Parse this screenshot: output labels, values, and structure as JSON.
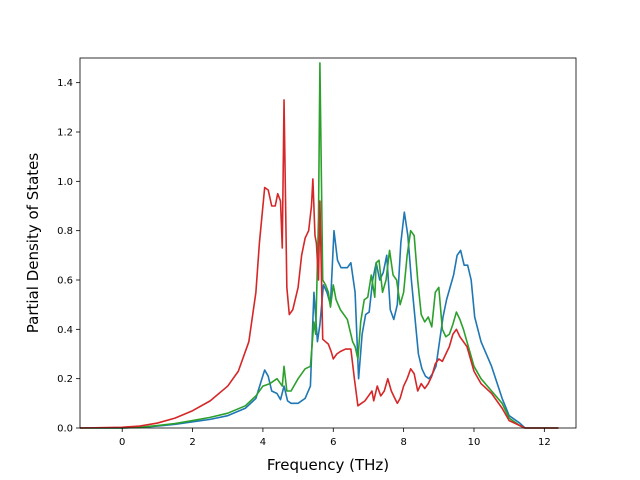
{
  "chart_data": {
    "type": "line",
    "title": "",
    "xlabel": "Frequency (THz)",
    "ylabel": "Partial Density of States",
    "xlim": [
      -1.2,
      12.9
    ],
    "ylim": [
      0.0,
      1.5
    ],
    "x_ticks": [
      0,
      2,
      4,
      6,
      8,
      10,
      12
    ],
    "y_ticks": [
      0.0,
      0.2,
      0.4,
      0.6,
      0.8,
      1.0,
      1.2,
      1.4
    ],
    "x_tick_labels": [
      "0",
      "2",
      "4",
      "6",
      "8",
      "10",
      "12"
    ],
    "y_tick_labels": [
      "0.0",
      "0.2",
      "0.4",
      "0.6",
      "0.8",
      "1.0",
      "1.2",
      "1.4"
    ],
    "grid": false,
    "legend": "none",
    "series": [
      {
        "color": "#1f77b4",
        "points": [
          [
            -1.2,
            0
          ],
          [
            0,
            0
          ],
          [
            0.5,
            0.002
          ],
          [
            1,
            0.008
          ],
          [
            1.5,
            0.015
          ],
          [
            2,
            0.025
          ],
          [
            2.5,
            0.035
          ],
          [
            3,
            0.05
          ],
          [
            3.5,
            0.08
          ],
          [
            3.8,
            0.12
          ],
          [
            3.95,
            0.19
          ],
          [
            4.05,
            0.235
          ],
          [
            4.15,
            0.21
          ],
          [
            4.25,
            0.15
          ],
          [
            4.4,
            0.14
          ],
          [
            4.5,
            0.115
          ],
          [
            4.6,
            0.17
          ],
          [
            4.7,
            0.11
          ],
          [
            4.8,
            0.1
          ],
          [
            5.0,
            0.1
          ],
          [
            5.2,
            0.12
          ],
          [
            5.35,
            0.17
          ],
          [
            5.45,
            0.55
          ],
          [
            5.55,
            0.35
          ],
          [
            5.62,
            0.42
          ],
          [
            5.72,
            0.58
          ],
          [
            5.82,
            0.55
          ],
          [
            5.92,
            0.5
          ],
          [
            6.02,
            0.8
          ],
          [
            6.12,
            0.68
          ],
          [
            6.22,
            0.65
          ],
          [
            6.4,
            0.65
          ],
          [
            6.5,
            0.67
          ],
          [
            6.62,
            0.55
          ],
          [
            6.72,
            0.2
          ],
          [
            6.82,
            0.38
          ],
          [
            6.92,
            0.46
          ],
          [
            7.02,
            0.47
          ],
          [
            7.12,
            0.6
          ],
          [
            7.22,
            0.67
          ],
          [
            7.32,
            0.6
          ],
          [
            7.42,
            0.63
          ],
          [
            7.52,
            0.7
          ],
          [
            7.62,
            0.48
          ],
          [
            7.72,
            0.44
          ],
          [
            7.82,
            0.5
          ],
          [
            7.92,
            0.75
          ],
          [
            8.02,
            0.875
          ],
          [
            8.12,
            0.78
          ],
          [
            8.22,
            0.6
          ],
          [
            8.32,
            0.45
          ],
          [
            8.42,
            0.3
          ],
          [
            8.52,
            0.24
          ],
          [
            8.62,
            0.21
          ],
          [
            8.72,
            0.2
          ],
          [
            8.82,
            0.22
          ],
          [
            8.92,
            0.25
          ],
          [
            9.02,
            0.35
          ],
          [
            9.12,
            0.45
          ],
          [
            9.22,
            0.52
          ],
          [
            9.32,
            0.57
          ],
          [
            9.42,
            0.62
          ],
          [
            9.52,
            0.7
          ],
          [
            9.62,
            0.72
          ],
          [
            9.72,
            0.66
          ],
          [
            9.82,
            0.66
          ],
          [
            9.92,
            0.6
          ],
          [
            10.02,
            0.45
          ],
          [
            10.2,
            0.35
          ],
          [
            10.5,
            0.25
          ],
          [
            10.8,
            0.12
          ],
          [
            11.0,
            0.05
          ],
          [
            11.3,
            0.02
          ],
          [
            11.45,
            0
          ],
          [
            12.4,
            0
          ]
        ]
      },
      {
        "color": "#2ca02c",
        "points": [
          [
            -1.2,
            0
          ],
          [
            0,
            0
          ],
          [
            0.5,
            0.003
          ],
          [
            1,
            0.01
          ],
          [
            1.5,
            0.018
          ],
          [
            2,
            0.03
          ],
          [
            2.5,
            0.043
          ],
          [
            3,
            0.06
          ],
          [
            3.5,
            0.09
          ],
          [
            3.8,
            0.13
          ],
          [
            4.0,
            0.17
          ],
          [
            4.2,
            0.18
          ],
          [
            4.4,
            0.2
          ],
          [
            4.55,
            0.17
          ],
          [
            4.6,
            0.25
          ],
          [
            4.68,
            0.15
          ],
          [
            4.8,
            0.15
          ],
          [
            5.0,
            0.2
          ],
          [
            5.2,
            0.24
          ],
          [
            5.35,
            0.25
          ],
          [
            5.45,
            0.43
          ],
          [
            5.5,
            0.38
          ],
          [
            5.58,
            0.85
          ],
          [
            5.62,
            1.48
          ],
          [
            5.7,
            0.6
          ],
          [
            5.78,
            0.58
          ],
          [
            5.86,
            0.55
          ],
          [
            5.92,
            0.49
          ],
          [
            6.0,
            0.58
          ],
          [
            6.08,
            0.52
          ],
          [
            6.2,
            0.48
          ],
          [
            6.4,
            0.44
          ],
          [
            6.55,
            0.35
          ],
          [
            6.62,
            0.33
          ],
          [
            6.7,
            0.28
          ],
          [
            6.78,
            0.43
          ],
          [
            6.88,
            0.52
          ],
          [
            6.98,
            0.53
          ],
          [
            7.08,
            0.62
          ],
          [
            7.18,
            0.53
          ],
          [
            7.22,
            0.67
          ],
          [
            7.3,
            0.68
          ],
          [
            7.4,
            0.55
          ],
          [
            7.5,
            0.6
          ],
          [
            7.6,
            0.72
          ],
          [
            7.7,
            0.62
          ],
          [
            7.8,
            0.6
          ],
          [
            7.9,
            0.5
          ],
          [
            8.0,
            0.55
          ],
          [
            8.1,
            0.7
          ],
          [
            8.2,
            0.8
          ],
          [
            8.3,
            0.78
          ],
          [
            8.4,
            0.6
          ],
          [
            8.5,
            0.46
          ],
          [
            8.6,
            0.43
          ],
          [
            8.7,
            0.45
          ],
          [
            8.8,
            0.41
          ],
          [
            8.9,
            0.55
          ],
          [
            9.0,
            0.57
          ],
          [
            9.1,
            0.4
          ],
          [
            9.2,
            0.37
          ],
          [
            9.3,
            0.38
          ],
          [
            9.4,
            0.42
          ],
          [
            9.5,
            0.47
          ],
          [
            9.6,
            0.44
          ],
          [
            9.7,
            0.4
          ],
          [
            9.8,
            0.35
          ],
          [
            9.9,
            0.3
          ],
          [
            10.0,
            0.25
          ],
          [
            10.2,
            0.2
          ],
          [
            10.5,
            0.15
          ],
          [
            10.8,
            0.1
          ],
          [
            11.0,
            0.04
          ],
          [
            11.3,
            0.01
          ],
          [
            11.45,
            0
          ],
          [
            12.4,
            0
          ]
        ]
      },
      {
        "color": "#d62728",
        "points": [
          [
            -1.2,
            0
          ],
          [
            0,
            0.003
          ],
          [
            0.5,
            0.008
          ],
          [
            1,
            0.02
          ],
          [
            1.5,
            0.04
          ],
          [
            2,
            0.07
          ],
          [
            2.5,
            0.11
          ],
          [
            3,
            0.17
          ],
          [
            3.3,
            0.23
          ],
          [
            3.6,
            0.35
          ],
          [
            3.8,
            0.55
          ],
          [
            3.9,
            0.75
          ],
          [
            4.0,
            0.9
          ],
          [
            4.05,
            0.975
          ],
          [
            4.15,
            0.965
          ],
          [
            4.25,
            0.9
          ],
          [
            4.35,
            0.9
          ],
          [
            4.42,
            0.95
          ],
          [
            4.5,
            0.92
          ],
          [
            4.55,
            0.73
          ],
          [
            4.6,
            1.33
          ],
          [
            4.68,
            0.57
          ],
          [
            4.75,
            0.46
          ],
          [
            4.85,
            0.48
          ],
          [
            5.0,
            0.57
          ],
          [
            5.1,
            0.7
          ],
          [
            5.2,
            0.77
          ],
          [
            5.3,
            0.8
          ],
          [
            5.38,
            0.9
          ],
          [
            5.42,
            1.01
          ],
          [
            5.48,
            0.78
          ],
          [
            5.52,
            0.75
          ],
          [
            5.58,
            0.6
          ],
          [
            5.62,
            0.92
          ],
          [
            5.7,
            0.36
          ],
          [
            5.78,
            0.35
          ],
          [
            5.86,
            0.34
          ],
          [
            5.94,
            0.31
          ],
          [
            6.0,
            0.28
          ],
          [
            6.1,
            0.3
          ],
          [
            6.2,
            0.31
          ],
          [
            6.35,
            0.32
          ],
          [
            6.5,
            0.32
          ],
          [
            6.6,
            0.2
          ],
          [
            6.7,
            0.09
          ],
          [
            6.8,
            0.1
          ],
          [
            6.9,
            0.11
          ],
          [
            7.0,
            0.13
          ],
          [
            7.1,
            0.15
          ],
          [
            7.15,
            0.11
          ],
          [
            7.25,
            0.17
          ],
          [
            7.35,
            0.13
          ],
          [
            7.45,
            0.15
          ],
          [
            7.55,
            0.2
          ],
          [
            7.65,
            0.15
          ],
          [
            7.75,
            0.12
          ],
          [
            7.82,
            0.1
          ],
          [
            7.9,
            0.12
          ],
          [
            8.0,
            0.17
          ],
          [
            8.1,
            0.2
          ],
          [
            8.2,
            0.24
          ],
          [
            8.3,
            0.22
          ],
          [
            8.4,
            0.15
          ],
          [
            8.5,
            0.18
          ],
          [
            8.6,
            0.16
          ],
          [
            8.7,
            0.18
          ],
          [
            8.8,
            0.21
          ],
          [
            8.9,
            0.26
          ],
          [
            9.0,
            0.28
          ],
          [
            9.1,
            0.27
          ],
          [
            9.2,
            0.3
          ],
          [
            9.3,
            0.33
          ],
          [
            9.4,
            0.38
          ],
          [
            9.5,
            0.4
          ],
          [
            9.6,
            0.37
          ],
          [
            9.7,
            0.35
          ],
          [
            9.8,
            0.33
          ],
          [
            9.9,
            0.28
          ],
          [
            10.0,
            0.23
          ],
          [
            10.2,
            0.18
          ],
          [
            10.5,
            0.14
          ],
          [
            10.8,
            0.08
          ],
          [
            11.0,
            0.03
          ],
          [
            11.3,
            0.01
          ],
          [
            11.45,
            0
          ],
          [
            12.4,
            0
          ]
        ]
      }
    ]
  }
}
